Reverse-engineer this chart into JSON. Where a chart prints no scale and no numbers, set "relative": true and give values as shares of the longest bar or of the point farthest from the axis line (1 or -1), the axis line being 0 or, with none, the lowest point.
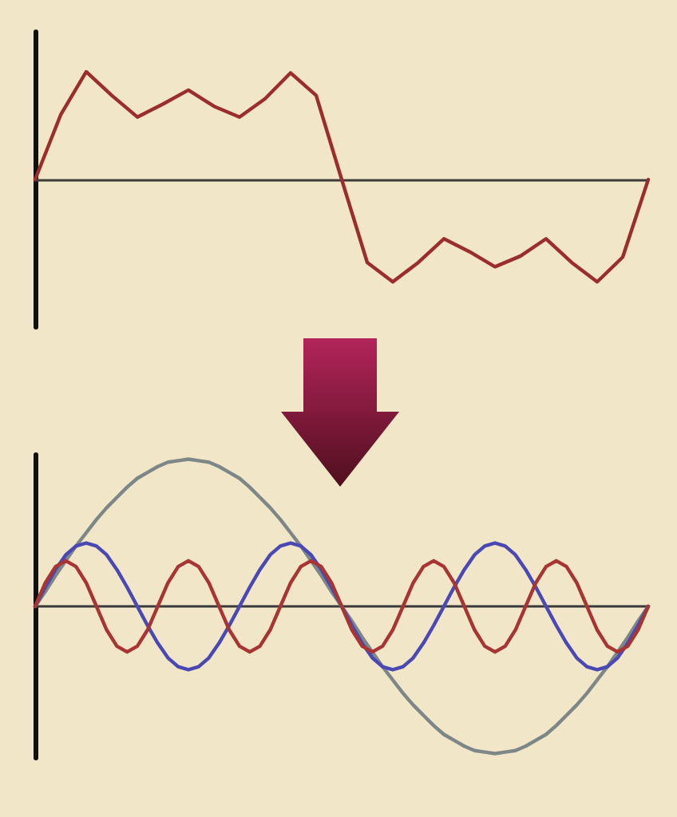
{
  "chart_data": [
    {
      "type": "line",
      "relative": true,
      "tick_labels": false,
      "grid": false,
      "marker": "none",
      "line_style": "solid",
      "categories": [
        null,
        null,
        null,
        null,
        null,
        null,
        null,
        null,
        null,
        null,
        null,
        null,
        null,
        null,
        null,
        null,
        null,
        null,
        null,
        null,
        null,
        null,
        null,
        null,
        null
      ],
      "series": [
        {
          "color": "#9b2d2d",
          "values": [
            0,
            0.6,
            1,
            0.78,
            0.58,
            0.7,
            0.83,
            0.68,
            0.58,
            0.75,
            0.99,
            0.78,
            0,
            -0.77,
            -0.95,
            -0.77,
            -0.55,
            -0.67,
            -0.81,
            -0.71,
            -0.55,
            -0.77,
            -0.95,
            -0.72,
            0
          ]
        }
      ]
    },
    {
      "type": "line",
      "relative": true,
      "tick_labels": false,
      "grid": false,
      "marker": "none",
      "line_style": "solid",
      "categories": [
        null,
        null,
        null,
        null,
        null,
        null,
        null,
        null,
        null,
        null,
        null,
        null,
        null,
        null,
        null,
        null,
        null,
        null,
        null,
        null,
        null,
        null,
        null,
        null,
        null,
        null,
        null,
        null,
        null,
        null,
        null,
        null,
        null,
        null,
        null,
        null,
        null,
        null,
        null,
        null,
        null,
        null,
        null,
        null,
        null,
        null,
        null,
        null,
        null,
        null,
        null,
        null,
        null,
        null,
        null,
        null,
        null,
        null,
        null,
        null,
        null
      ],
      "series": [
        {
          "color": "#7d8787",
          "values": [
            0,
            0.1,
            0.21,
            0.31,
            0.41,
            0.5,
            0.59,
            0.67,
            0.74,
            0.81,
            0.87,
            0.91,
            0.95,
            0.98,
            0.99,
            1,
            0.99,
            0.98,
            0.95,
            0.91,
            0.87,
            0.81,
            0.74,
            0.67,
            0.59,
            0.5,
            0.41,
            0.31,
            0.21,
            0.1,
            0,
            -0.1,
            -0.21,
            -0.31,
            -0.41,
            -0.5,
            -0.59,
            -0.67,
            -0.74,
            -0.81,
            -0.87,
            -0.91,
            -0.95,
            -0.98,
            -0.99,
            -1,
            -0.99,
            -0.98,
            -0.95,
            -0.91,
            -0.87,
            -0.81,
            -0.74,
            -0.67,
            -0.59,
            -0.5,
            -0.41,
            -0.31,
            -0.21,
            -0.1,
            0
          ]
        },
        {
          "color": "#4a48b4",
          "values": [
            0,
            0.13,
            0.25,
            0.35,
            0.41,
            0.43,
            0.41,
            0.35,
            0.25,
            0.13,
            0,
            -0.13,
            -0.25,
            -0.35,
            -0.41,
            -0.43,
            -0.41,
            -0.35,
            -0.25,
            -0.13,
            0,
            0.13,
            0.25,
            0.35,
            0.41,
            0.43,
            0.41,
            0.35,
            0.25,
            0.13,
            0,
            -0.13,
            -0.25,
            -0.35,
            -0.41,
            -0.43,
            -0.41,
            -0.35,
            -0.25,
            -0.13,
            0,
            0.13,
            0.25,
            0.35,
            0.41,
            0.43,
            0.41,
            0.35,
            0.25,
            0.13,
            0,
            -0.13,
            -0.25,
            -0.35,
            -0.41,
            -0.43,
            -0.41,
            -0.35,
            -0.25,
            -0.13,
            0
          ]
        },
        {
          "color": "#a83434",
          "values": [
            0,
            0.16,
            0.27,
            0.31,
            0.27,
            0.16,
            0,
            -0.16,
            -0.27,
            -0.31,
            -0.27,
            -0.16,
            0,
            0.16,
            0.27,
            0.31,
            0.27,
            0.16,
            0,
            -0.16,
            -0.27,
            -0.31,
            -0.27,
            -0.16,
            0,
            0.16,
            0.27,
            0.31,
            0.27,
            0.16,
            0,
            -0.16,
            -0.27,
            -0.31,
            -0.27,
            -0.16,
            0,
            0.16,
            0.27,
            0.31,
            0.27,
            0.16,
            0,
            -0.16,
            -0.27,
            -0.31,
            -0.27,
            -0.16,
            0,
            0.16,
            0.27,
            0.31,
            0.27,
            0.16,
            0,
            -0.16,
            -0.27,
            -0.31,
            -0.27,
            -0.16,
            0
          ]
        }
      ]
    }
  ]
}
